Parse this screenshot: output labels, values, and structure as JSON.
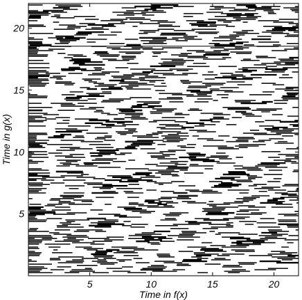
{
  "chart_data": {
    "type": "scatter",
    "marker": "horizontal-dash",
    "title": "",
    "xlabel": "Time in f(x)",
    "ylabel": "Time in g(x)",
    "xlim": [
      0,
      22
    ],
    "ylim": [
      0,
      22
    ],
    "xticks": [
      5,
      10,
      15,
      20
    ],
    "yticks": [
      5,
      10,
      15,
      20
    ],
    "xtick_labels": [
      "5",
      "10",
      "15",
      "20"
    ],
    "ytick_labels": [
      "5",
      "10",
      "15",
      "20"
    ],
    "grid": false,
    "legend": "none",
    "reference_lines": [
      {
        "orientation": "horizontal",
        "y": 18.55
      }
    ],
    "band_spacing_y": 2.66,
    "band_slope": 0.33,
    "data_point_count_estimate": 2500,
    "color": "#000000"
  }
}
